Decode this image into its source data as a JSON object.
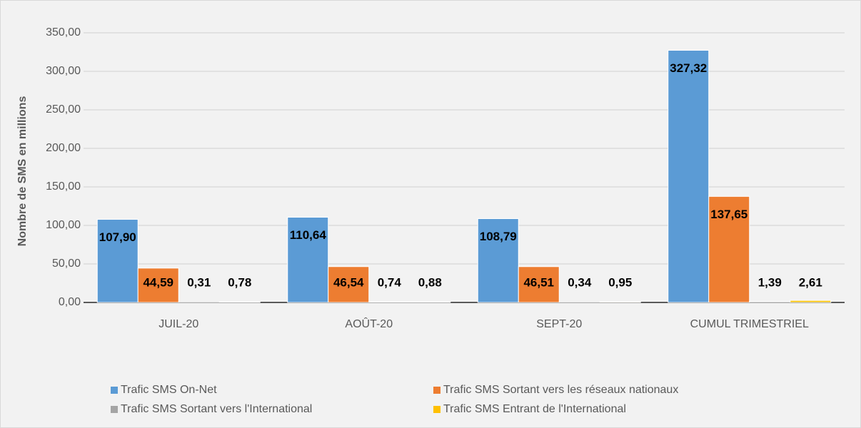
{
  "chart_data": {
    "type": "bar",
    "y_label": "Nombre de SMS en millions",
    "categories": [
      "JUIL-20",
      "AOÛT-20",
      "SEPT-20",
      "CUMUL TRIMESTRIEL"
    ],
    "series": [
      {
        "name": "Trafic SMS On-Net",
        "color": "#5b9bd5",
        "values": [
          107.9,
          110.64,
          108.79,
          327.32
        ],
        "value_labels": [
          "107,90",
          "110,64",
          "108,79",
          "327,32"
        ]
      },
      {
        "name": "Trafic SMS Sortant vers les réseaux nationaux",
        "color": "#ed7d31",
        "values": [
          44.59,
          46.54,
          46.51,
          137.65
        ],
        "value_labels": [
          "44,59",
          "46,54",
          "46,51",
          "137,65"
        ]
      },
      {
        "name": "Trafic SMS Sortant vers l'International",
        "color": "#a5a5a5",
        "values": [
          0.31,
          0.74,
          0.34,
          1.39
        ],
        "value_labels": [
          "0,31",
          "0,74",
          "0,34",
          "1,39"
        ]
      },
      {
        "name": "Trafic SMS Entrant de l'International",
        "color": "#ffc000",
        "values": [
          0.78,
          0.88,
          0.95,
          2.61
        ],
        "value_labels": [
          "0,78",
          "0,88",
          "0,95",
          "2,61"
        ]
      }
    ],
    "ylim": [
      0,
      350
    ],
    "yticks": [
      {
        "value": 0,
        "label": "0,00"
      },
      {
        "value": 50,
        "label": "50,00"
      },
      {
        "value": 100,
        "label": "100,00"
      },
      {
        "value": 150,
        "label": "150,00"
      },
      {
        "value": 200,
        "label": "200,00"
      },
      {
        "value": 250,
        "label": "250,00"
      },
      {
        "value": 300,
        "label": "300,00"
      },
      {
        "value": 350,
        "label": "350,00"
      }
    ],
    "grid": true
  }
}
